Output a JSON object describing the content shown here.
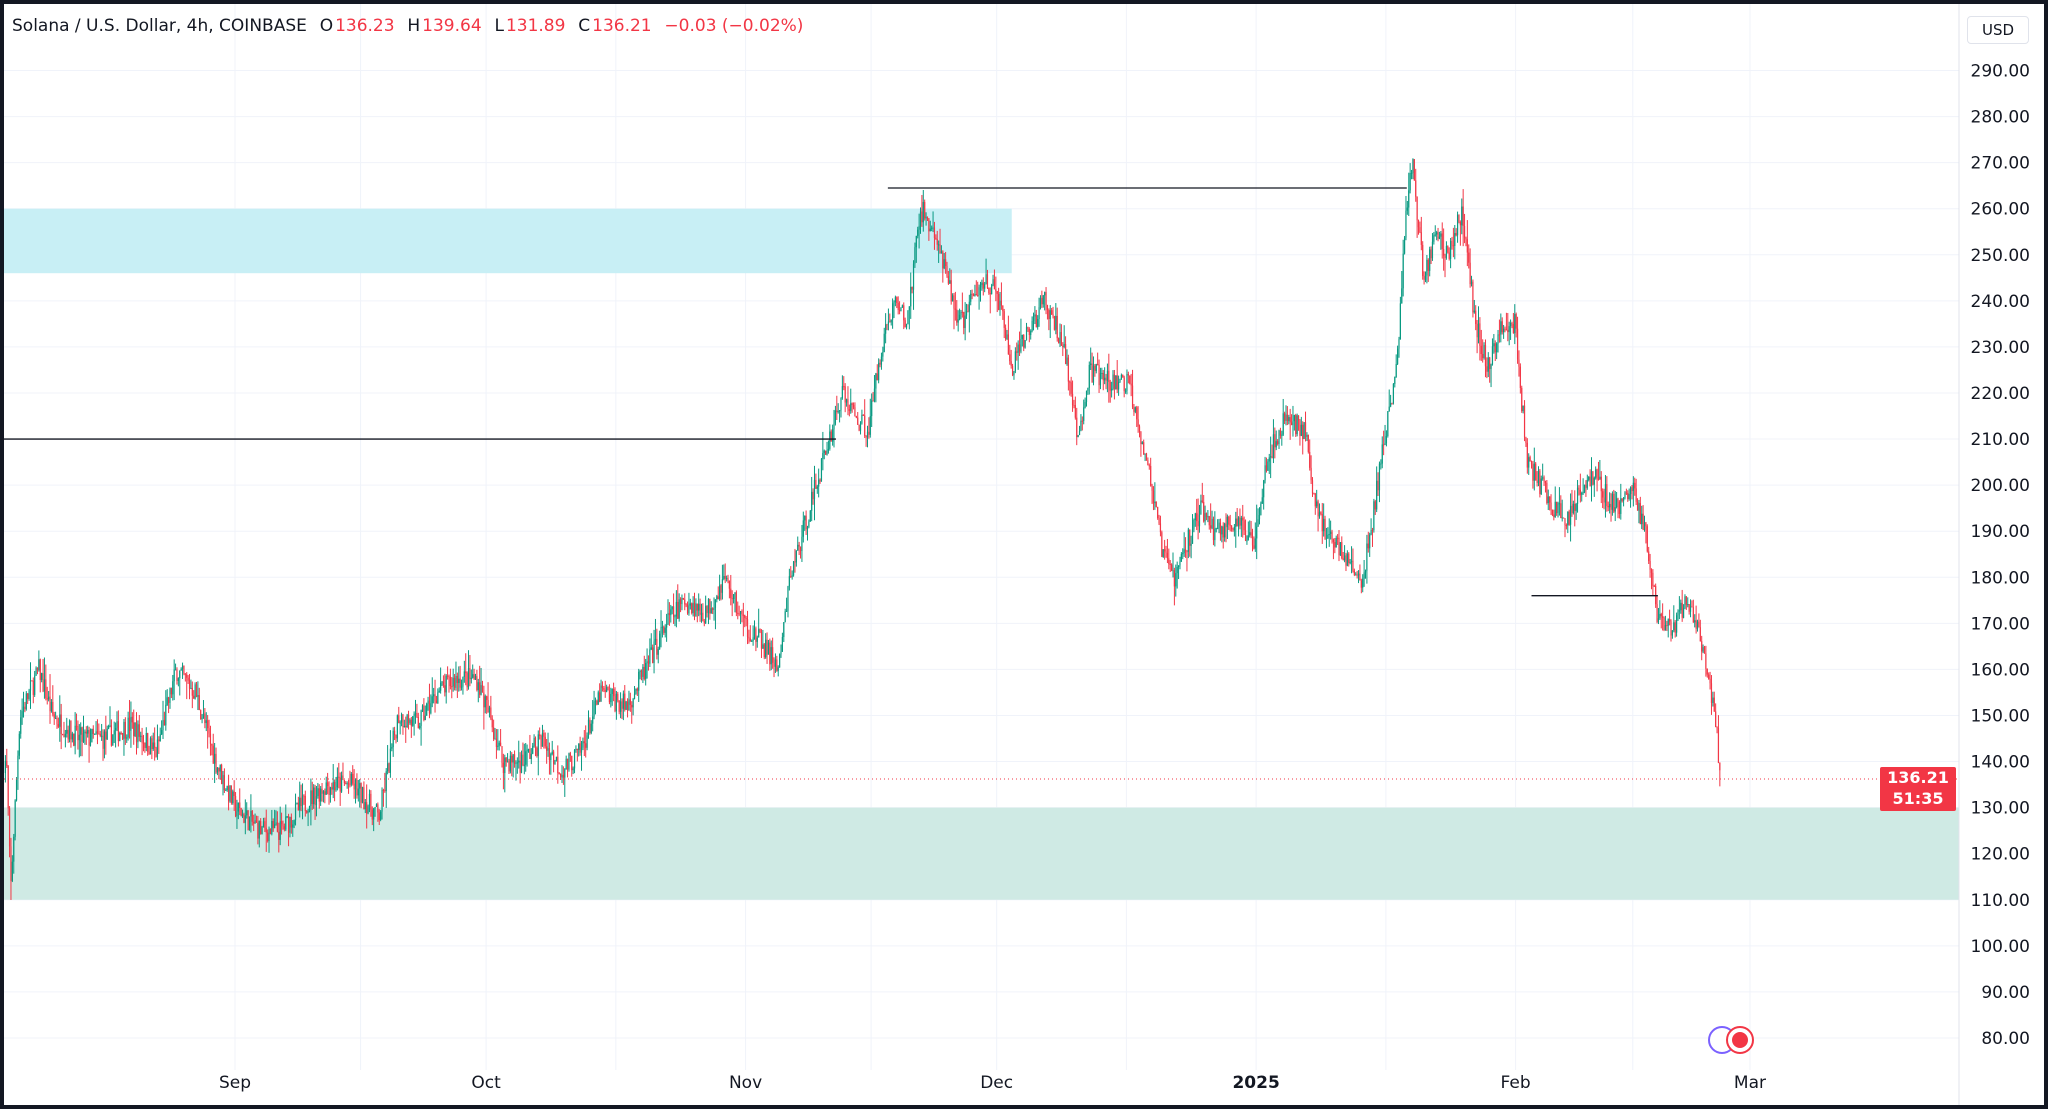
{
  "legend": {
    "symbol": "Solana / U.S. Dollar, 4h, COINBASE",
    "o_label": "O",
    "o": "136.23",
    "h_label": "H",
    "h": "139.64",
    "l_label": "L",
    "l": "131.89",
    "c_label": "C",
    "c": "136.21",
    "change": "−0.03 (−0.02%)"
  },
  "currency_button": "USD",
  "last_price": {
    "value": "136.21",
    "countdown": "51:35"
  },
  "colors": {
    "up": "#089981",
    "down": "#f23645",
    "resistance_zone": "#c8eff5",
    "support_zone": "#cfeae4",
    "line": "#131722"
  },
  "chart_data": {
    "type": "candlestick",
    "title": "Solana / U.S. Dollar, 4h, COINBASE",
    "x_unit": "days since Sep 1 2024",
    "xlim": [
      -27.6,
      206
    ],
    "ylim": [
      75,
      295
    ],
    "y_ticks": [
      "80.00",
      "90.00",
      "100.00",
      "110.00",
      "120.00",
      "130.00",
      "140.00",
      "150.00",
      "160.00",
      "170.00",
      "180.00",
      "190.00",
      "200.00",
      "210.00",
      "220.00",
      "230.00",
      "240.00",
      "250.00",
      "260.00",
      "270.00",
      "280.00",
      "290.00"
    ],
    "x_ticks": [
      {
        "label": "Sep",
        "day": 0
      },
      {
        "label": "Oct",
        "day": 30
      },
      {
        "label": "Nov",
        "day": 61
      },
      {
        "label": "Dec",
        "day": 91
      },
      {
        "label": "2025",
        "day": 122,
        "bold": true
      },
      {
        "label": "Feb",
        "day": 153
      },
      {
        "label": "Mar",
        "day": 181
      }
    ],
    "close_path": [
      [
        -27.3,
        140
      ],
      [
        -26.8,
        112
      ],
      [
        -25.7,
        150
      ],
      [
        -23.4,
        160
      ],
      [
        -21.8,
        150
      ],
      [
        -18.7,
        145
      ],
      [
        -15.6,
        145
      ],
      [
        -12.5,
        148
      ],
      [
        -9.4,
        142
      ],
      [
        -7,
        160
      ],
      [
        -4.7,
        155
      ],
      [
        -2.3,
        140
      ],
      [
        0,
        130
      ],
      [
        3.1,
        125
      ],
      [
        5.5,
        125
      ],
      [
        7.8,
        130
      ],
      [
        10.9,
        135
      ],
      [
        14,
        135
      ],
      [
        17.2,
        128
      ],
      [
        19.5,
        150
      ],
      [
        21.8,
        148
      ],
      [
        24.2,
        155
      ],
      [
        26.5,
        158
      ],
      [
        28.9,
        158
      ],
      [
        30.4,
        150
      ],
      [
        32,
        140
      ],
      [
        34.3,
        140
      ],
      [
        36.7,
        145
      ],
      [
        39,
        138
      ],
      [
        41.3,
        142
      ],
      [
        43.7,
        155
      ],
      [
        46.8,
        152
      ],
      [
        49.1,
        160
      ],
      [
        51.5,
        170
      ],
      [
        53.8,
        175
      ],
      [
        56.2,
        172
      ],
      [
        58.5,
        180
      ],
      [
        60.8,
        170
      ],
      [
        63.2,
        165
      ],
      [
        65,
        160
      ],
      [
        66.3,
        180
      ],
      [
        67.9,
        190
      ],
      [
        69.4,
        200
      ],
      [
        71,
        210
      ],
      [
        72.5,
        220
      ],
      [
        74.1,
        215
      ],
      [
        75.7,
        212
      ],
      [
        77.2,
        230
      ],
      [
        78.8,
        240
      ],
      [
        80.3,
        235
      ],
      [
        81.9,
        260
      ],
      [
        83.5,
        255
      ],
      [
        85,
        245
      ],
      [
        86.6,
        235
      ],
      [
        88.1,
        240
      ],
      [
        89.7,
        245
      ],
      [
        91.3,
        240
      ],
      [
        92.8,
        225
      ],
      [
        95.2,
        235
      ],
      [
        96.7,
        240
      ],
      [
        99.1,
        230
      ],
      [
        100.6,
        210
      ],
      [
        102.2,
        225
      ],
      [
        104.5,
        222
      ],
      [
        106.9,
        222
      ],
      [
        108.4,
        210
      ],
      [
        109.5,
        200
      ],
      [
        110.8,
        185
      ],
      [
        112.3,
        180
      ],
      [
        113.9,
        188
      ],
      [
        115.4,
        195
      ],
      [
        117,
        190
      ],
      [
        119.3,
        192
      ],
      [
        121.7,
        188
      ],
      [
        123.2,
        205
      ],
      [
        125.6,
        215
      ],
      [
        127.9,
        212
      ],
      [
        128.7,
        198
      ],
      [
        130.3,
        190
      ],
      [
        132.6,
        185
      ],
      [
        134.6,
        178
      ],
      [
        135.7,
        190
      ],
      [
        137.3,
        210
      ],
      [
        138.8,
        225
      ],
      [
        139.9,
        260
      ],
      [
        140.7,
        270
      ],
      [
        142,
        245
      ],
      [
        143.5,
        255
      ],
      [
        145.1,
        250
      ],
      [
        146.6,
        260
      ],
      [
        148.2,
        235
      ],
      [
        149.8,
        225
      ],
      [
        151.3,
        235
      ],
      [
        152.9,
        235
      ],
      [
        154.4,
        205
      ],
      [
        156,
        200
      ],
      [
        157.6,
        195
      ],
      [
        159.1,
        192
      ],
      [
        160.7,
        200
      ],
      [
        162.2,
        202
      ],
      [
        163.8,
        198
      ],
      [
        165.4,
        195
      ],
      [
        166.9,
        200
      ],
      [
        168.5,
        190
      ],
      [
        170,
        170
      ],
      [
        171.6,
        168
      ],
      [
        173.2,
        175
      ],
      [
        174.7,
        170
      ],
      [
        176.3,
        155
      ],
      [
        177.1,
        145
      ],
      [
        177.5,
        136.21
      ]
    ],
    "last_candle": {
      "open": 136.23,
      "high": 139.64,
      "low": 131.89,
      "close": 136.21
    },
    "zones": [
      {
        "name": "resistance-zone",
        "from_day": -27.6,
        "to_day": 92.8,
        "low": 246,
        "high": 260
      },
      {
        "name": "support-zone",
        "from_day": -27.6,
        "to_day": 206,
        "low": 110,
        "high": 130
      }
    ],
    "hlines": [
      {
        "name": "level-210",
        "price": 210,
        "from_day": -27.6,
        "to_day": 71.8
      },
      {
        "name": "level-264",
        "price": 264.5,
        "from_day": 78,
        "to_day": 140
      },
      {
        "name": "level-176",
        "price": 176,
        "from_day": 154.9,
        "to_day": 170
      }
    ],
    "last_price": 136.21
  }
}
